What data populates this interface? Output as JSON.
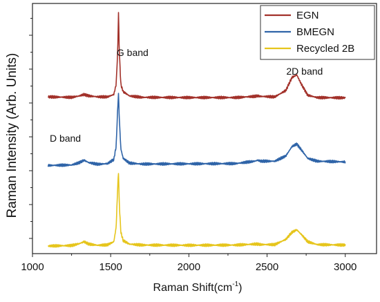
{
  "chart_data": {
    "type": "line",
    "title": "",
    "xlabel": "Raman Shift(cm",
    "xlabel_sup": "-1",
    "xlabel_close": ")",
    "ylabel": "Raman Intensity (Arb. Units)",
    "xlim": [
      1000,
      3200
    ],
    "x_ticks": [
      "1000",
      "1500",
      "2000",
      "2500",
      "3000"
    ],
    "y_tick_labels_shown": false,
    "grid": false,
    "legend_position": "top-right",
    "annotations": [
      {
        "id": "g-band",
        "text": "G band",
        "x": 1580,
        "series": "EGN"
      },
      {
        "id": "d-band",
        "text": "D band",
        "x": 1250,
        "series": "BMEGN"
      },
      {
        "id": "2d-band",
        "text": "2D band",
        "x": 2700,
        "series": "EGN"
      }
    ],
    "series": [
      {
        "name": "EGN",
        "color": "#a2312a",
        "offset": 6.2,
        "x": [
          1100,
          1250,
          1300,
          1330,
          1360,
          1420,
          1480,
          1520,
          1535,
          1545,
          1550,
          1555,
          1565,
          1580,
          1620,
          1700,
          2000,
          2300,
          2420,
          2440,
          2460,
          2550,
          2620,
          2660,
          2690,
          2720,
          2760,
          2820,
          3000
        ],
        "y": [
          0.08,
          0.06,
          0.12,
          0.18,
          0.12,
          0.08,
          0.08,
          0.18,
          0.6,
          2.0,
          3.6,
          2.0,
          0.6,
          0.3,
          0.12,
          0.06,
          0.05,
          0.05,
          0.1,
          0.12,
          0.1,
          0.08,
          0.35,
          0.9,
          1.0,
          0.6,
          0.15,
          0.05,
          0.04
        ]
      },
      {
        "name": "BMEGN",
        "color": "#2f64a8",
        "offset": 3.4,
        "x": [
          1100,
          1250,
          1300,
          1330,
          1360,
          1420,
          1480,
          1520,
          1535,
          1545,
          1550,
          1555,
          1565,
          1580,
          1620,
          1700,
          2000,
          2300,
          2420,
          2440,
          2460,
          2550,
          2620,
          2660,
          2690,
          2720,
          2760,
          2820,
          3000
        ],
        "y": [
          0.0,
          0.02,
          0.12,
          0.22,
          0.12,
          0.05,
          0.08,
          0.25,
          0.8,
          2.4,
          3.0,
          2.0,
          0.7,
          0.3,
          0.1,
          0.06,
          0.07,
          0.08,
          0.18,
          0.22,
          0.18,
          0.18,
          0.4,
          0.8,
          0.9,
          0.65,
          0.3,
          0.18,
          0.15
        ]
      },
      {
        "name": "Recycled 2B",
        "color": "#e6c51c",
        "offset": 0.0,
        "x": [
          1100,
          1250,
          1300,
          1330,
          1360,
          1420,
          1480,
          1520,
          1535,
          1545,
          1550,
          1555,
          1565,
          1580,
          1620,
          1700,
          2000,
          2300,
          2420,
          2440,
          2460,
          2550,
          2620,
          2660,
          2690,
          2720,
          2760,
          2820,
          3000
        ],
        "y": [
          0.02,
          0.04,
          0.12,
          0.2,
          0.1,
          0.05,
          0.07,
          0.2,
          0.8,
          2.5,
          3.1,
          1.8,
          0.6,
          0.25,
          0.1,
          0.06,
          0.05,
          0.06,
          0.1,
          0.1,
          0.08,
          0.08,
          0.3,
          0.6,
          0.7,
          0.5,
          0.2,
          0.08,
          0.06
        ]
      }
    ]
  }
}
